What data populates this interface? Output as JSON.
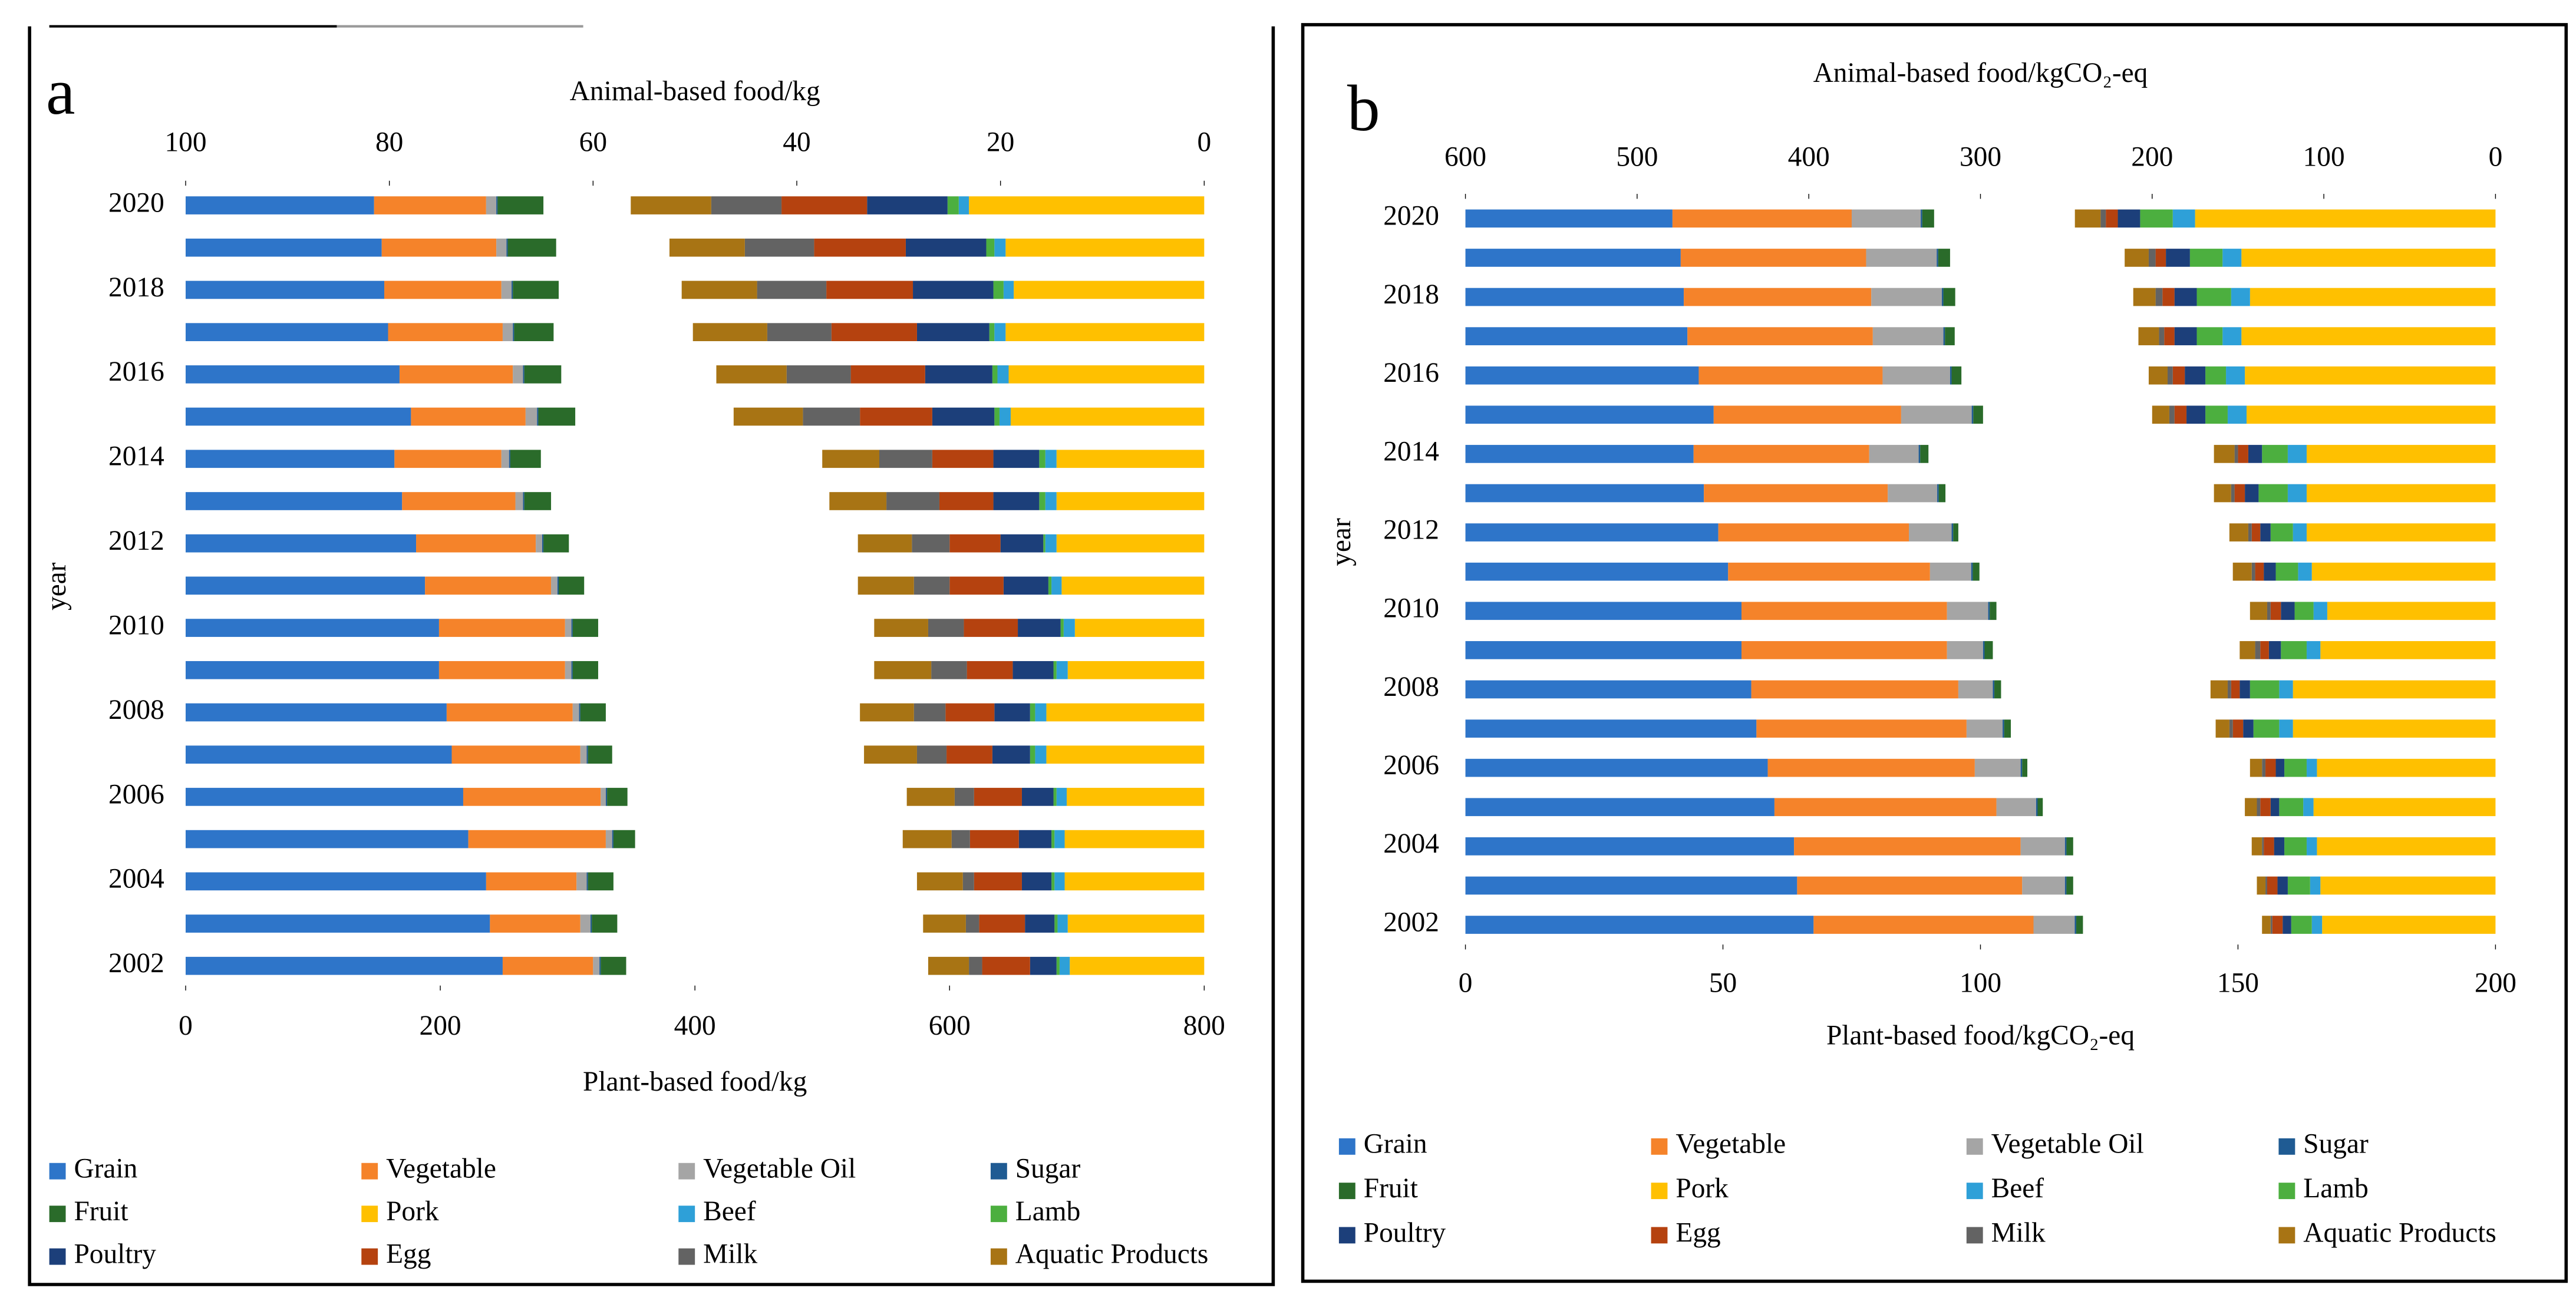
{
  "chart_data": [
    {
      "type": "bar",
      "orientation": "horizontal",
      "stacked": true,
      "panel_label": "a",
      "x_label": "Plant-based food/kg",
      "x2_label": "Animal-based food/kg",
      "y_label": "year",
      "categories": [
        "2002",
        null,
        "2004",
        null,
        "2006",
        null,
        "2008",
        null,
        "2010",
        null,
        "2012",
        null,
        "2014",
        null,
        "2016",
        null,
        "2018",
        null,
        "2020"
      ],
      "xlim": [
        0,
        800
      ],
      "xticks": [
        0,
        200,
        400,
        600,
        800
      ],
      "x2lim": [
        100,
        0
      ],
      "x2ticks": [
        100,
        80,
        60,
        40,
        20,
        0
      ],
      "series": [
        {
          "name": "Grain",
          "color": "#2e75c9",
          "axis": "x",
          "values": [
            249,
            239,
            236,
            222,
            218,
            209,
            205,
            199,
            199,
            188,
            181,
            170,
            164,
            177,
            168,
            159,
            156,
            154,
            148
          ]
        },
        {
          "name": "Vegetable",
          "color": "#f5832a",
          "axis": "x",
          "values": [
            71,
            71,
            71,
            108,
            108,
            101,
            99,
            99,
            99,
            99,
            94,
            89,
            84,
            90,
            89,
            90,
            92,
            90,
            88
          ]
        },
        {
          "name": "Vegetable Oil",
          "color": "#a5a5a5",
          "axis": "x",
          "values": [
            5,
            8,
            8,
            5,
            4,
            5,
            5,
            5,
            5,
            5,
            5,
            6,
            6,
            9,
            8,
            8,
            8,
            8,
            8
          ]
        },
        {
          "name": "Sugar",
          "color": "#1f5b93",
          "axis": "x",
          "values": [
            1,
            1,
            1,
            1,
            1,
            1,
            1,
            1,
            1,
            1,
            1,
            1,
            1,
            1,
            1,
            1,
            1,
            1,
            1
          ]
        },
        {
          "name": "Fruit",
          "color": "#2a6b2a",
          "axis": "x",
          "values": [
            20,
            20,
            20,
            17,
            16,
            19,
            20,
            20,
            20,
            20,
            20,
            21,
            24,
            29,
            29,
            31,
            36,
            38,
            36
          ]
        },
        {
          "name": "Pork",
          "color": "#ffc000",
          "axis": "x2",
          "values": [
            13.2,
            13.4,
            13.7,
            13.7,
            13.5,
            15.5,
            15.5,
            13.4,
            12.7,
            14.0,
            14.5,
            14.5,
            14.5,
            19.0,
            19.2,
            19.5,
            18.7,
            19.5,
            23.1
          ]
        },
        {
          "name": "Beef",
          "color": "#2ea0d8",
          "axis": "x2",
          "values": [
            1.0,
            1.0,
            1.0,
            1.0,
            1.0,
            1.1,
            1.1,
            1.1,
            1.1,
            1.0,
            1.1,
            1.1,
            1.1,
            1.1,
            1.1,
            1.1,
            1.0,
            1.1,
            1.0
          ]
        },
        {
          "name": "Lamb",
          "color": "#4caf3f",
          "axis": "x2",
          "values": [
            0.3,
            0.3,
            0.3,
            0.3,
            0.3,
            0.5,
            0.5,
            0.3,
            0.3,
            0.3,
            0.2,
            0.6,
            0.6,
            0.5,
            0.5,
            0.5,
            1.0,
            0.8,
            1.1
          ]
        },
        {
          "name": "Poultry",
          "color": "#1c3f7a",
          "axis": "x2",
          "values": [
            2.6,
            2.9,
            2.9,
            3.2,
            3.1,
            3.7,
            3.5,
            4.0,
            4.2,
            4.4,
            4.2,
            4.5,
            4.5,
            6.1,
            6.6,
            7.1,
            7.9,
            7.9,
            7.9
          ]
        },
        {
          "name": "Egg",
          "color": "#b5420f",
          "axis": "x2",
          "values": [
            4.7,
            4.5,
            4.7,
            4.8,
            4.7,
            4.5,
            4.8,
            4.5,
            5.3,
            5.3,
            5.0,
            5.3,
            6.0,
            7.1,
            7.3,
            8.4,
            8.5,
            9.0,
            8.4
          ]
        },
        {
          "name": "Milk",
          "color": "#636363",
          "axis": "x2",
          "values": [
            1.3,
            1.3,
            1.1,
            1.8,
            1.9,
            2.9,
            3.1,
            3.5,
            3.5,
            3.5,
            3.7,
            5.2,
            5.2,
            5.6,
            6.3,
            6.3,
            6.8,
            6.8,
            6.9
          ]
        },
        {
          "name": "Aquatic Products",
          "color": "#a87414",
          "axis": "x2",
          "values": [
            4.0,
            4.2,
            4.5,
            4.8,
            4.7,
            5.2,
            5.3,
            5.6,
            5.3,
            5.5,
            5.3,
            5.6,
            5.6,
            6.8,
            6.9,
            7.3,
            7.4,
            7.4,
            7.9
          ]
        }
      ]
    },
    {
      "type": "bar",
      "orientation": "horizontal",
      "stacked": true,
      "panel_label": "b",
      "x_label": "Plant-based food/kgCO₂-eq",
      "x2_label": "Animal-based food/kgCO₂-eq",
      "y_label": "year",
      "categories": [
        "2002",
        null,
        "2004",
        null,
        "2006",
        null,
        "2008",
        null,
        "2010",
        null,
        "2012",
        null,
        "2014",
        null,
        "2016",
        null,
        "2018",
        null,
        "2020"
      ],
      "xlim": [
        0,
        200
      ],
      "xticks": [
        0,
        50,
        100,
        150,
        200
      ],
      "x2lim": [
        600,
        0
      ],
      "x2ticks": [
        600,
        500,
        400,
        300,
        200,
        100,
        0
      ],
      "series": [
        {
          "name": "Grain",
          "color": "#2e75c9",
          "axis": "x",
          "values": [
            67.6,
            64.4,
            63.8,
            60.0,
            58.7,
            56.5,
            55.5,
            53.6,
            53.6,
            51.0,
            49.1,
            46.3,
            44.3,
            48.2,
            45.3,
            43.1,
            42.4,
            41.8,
            40.2
          ]
        },
        {
          "name": "Vegetable",
          "color": "#f5832a",
          "axis": "x",
          "values": [
            42.7,
            43.7,
            44.0,
            43.1,
            40.2,
            40.8,
            40.2,
            39.9,
            39.9,
            39.2,
            37.0,
            35.7,
            34.1,
            36.4,
            35.7,
            36.0,
            36.4,
            36.0,
            34.8
          ]
        },
        {
          "name": "Vegetable Oil",
          "color": "#a5a5a5",
          "axis": "x",
          "values": [
            8.0,
            8.3,
            8.6,
            7.7,
            8.9,
            7.0,
            6.7,
            7.0,
            8.0,
            8.0,
            8.3,
            9.6,
            9.6,
            13.7,
            13.1,
            13.7,
            13.7,
            13.7,
            13.4
          ]
        },
        {
          "name": "Sugar",
          "color": "#1f5b93",
          "axis": "x",
          "values": [
            0.3,
            0.3,
            0.3,
            0.3,
            0.3,
            0.3,
            0.3,
            0.3,
            0.3,
            0.3,
            0.3,
            0.3,
            0.3,
            0.3,
            0.3,
            0.3,
            0.3,
            0.3,
            0.3
          ]
        },
        {
          "name": "Fruit",
          "color": "#2a6b2a",
          "axis": "x",
          "values": [
            1.3,
            1.3,
            1.3,
            1.0,
            1.0,
            1.3,
            1.3,
            1.6,
            1.3,
            1.3,
            1.0,
            1.3,
            1.6,
            1.9,
            1.9,
            1.9,
            2.3,
            2.3,
            2.3
          ]
        },
        {
          "name": "Pork",
          "color": "#ffc000",
          "axis": "x2",
          "values": [
            101,
            102,
            104,
            106,
            104,
            118,
            118,
            102,
            98,
            107,
            110,
            110,
            110,
            145,
            146,
            148,
            143,
            148,
            175
          ]
        },
        {
          "name": "Beef",
          "color": "#2ea0d8",
          "axis": "x2",
          "values": [
            6,
            6,
            6,
            6,
            6,
            8,
            8,
            8,
            8,
            8,
            8,
            11,
            11,
            11,
            11,
            11,
            11,
            11,
            13
          ]
        },
        {
          "name": "Lamb",
          "color": "#4caf3f",
          "axis": "x2",
          "values": [
            12,
            13,
            13,
            14,
            13,
            15,
            17,
            15,
            11,
            13,
            13,
            17,
            15,
            13,
            12,
            15,
            20,
            19,
            19
          ]
        },
        {
          "name": "Poultry",
          "color": "#1c3f7a",
          "axis": "x2",
          "values": [
            5,
            6,
            6,
            5,
            5,
            6,
            6,
            7,
            8,
            7,
            6,
            8,
            8,
            11,
            12,
            13,
            13,
            14,
            13
          ]
        },
        {
          "name": "Egg",
          "color": "#b5420f",
          "axis": "x2",
          "values": [
            6,
            6,
            6,
            6,
            6,
            6,
            5,
            5,
            6,
            5,
            5,
            6,
            6,
            7,
            7,
            6,
            7,
            6,
            7
          ]
        },
        {
          "name": "Milk",
          "color": "#636363",
          "axis": "x2",
          "values": [
            1,
            1,
            1,
            2,
            2,
            2,
            2,
            3,
            2,
            2,
            2,
            2,
            2,
            3,
            3,
            3,
            4,
            4,
            3
          ]
        },
        {
          "name": "Aquatic Products",
          "color": "#a87414",
          "axis": "x2",
          "values": [
            5,
            5,
            6,
            7,
            7,
            8,
            10,
            9,
            10,
            11,
            11,
            10,
            12,
            10,
            11,
            12,
            13,
            14,
            15
          ]
        }
      ]
    }
  ]
}
